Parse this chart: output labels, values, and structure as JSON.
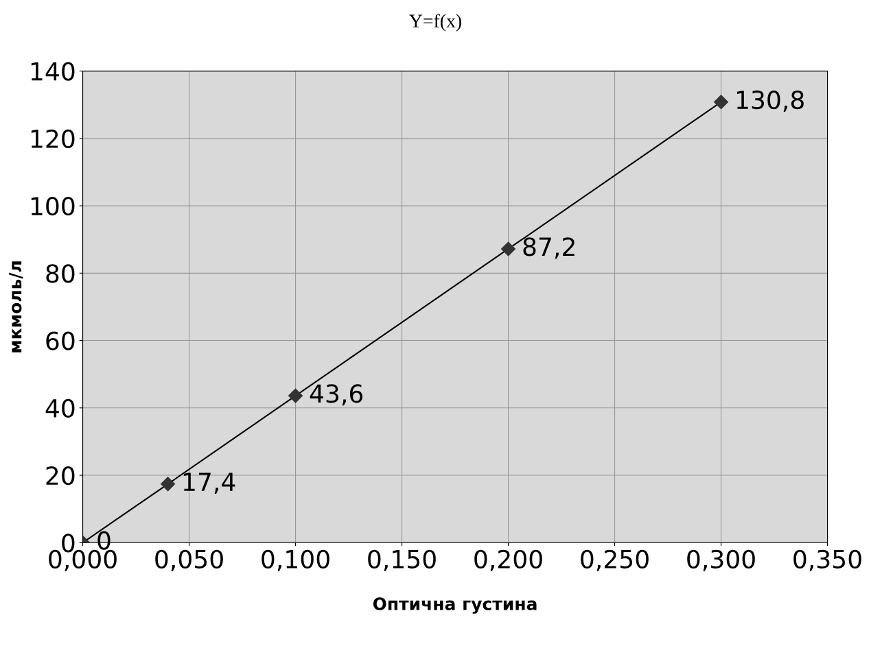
{
  "chart_data": {
    "type": "line",
    "title": "Y=f(x)",
    "xlabel": "Оптична густина",
    "ylabel": "мкмоль/л",
    "x": [
      0,
      0.04,
      0.1,
      0.2,
      0.3
    ],
    "series": [
      {
        "color": "#333333",
        "values": [
          0,
          17.4,
          43.6,
          87.2,
          130.8
        ],
        "value_labels": [
          "0",
          "17,4",
          "43,6",
          "87,2",
          "130,8"
        ]
      }
    ],
    "xlim": [
      0,
      0.35
    ],
    "xticks": [
      {
        "value": 0,
        "label": "0,000"
      },
      {
        "value": 0.05,
        "label": "0,050"
      },
      {
        "value": 0.1,
        "label": "0,100"
      },
      {
        "value": 0.15,
        "label": "0,150"
      },
      {
        "value": 0.2,
        "label": "0,200"
      },
      {
        "value": 0.25,
        "label": "0,250"
      },
      {
        "value": 0.3,
        "label": "0,300"
      },
      {
        "value": 0.35,
        "label": "0,350"
      }
    ],
    "ylim": [
      0,
      140
    ],
    "yticks": [
      0,
      20,
      40,
      60,
      80,
      100,
      120,
      140
    ],
    "grid": true,
    "marker": "diamond",
    "line_style": "solid",
    "legend": false
  }
}
